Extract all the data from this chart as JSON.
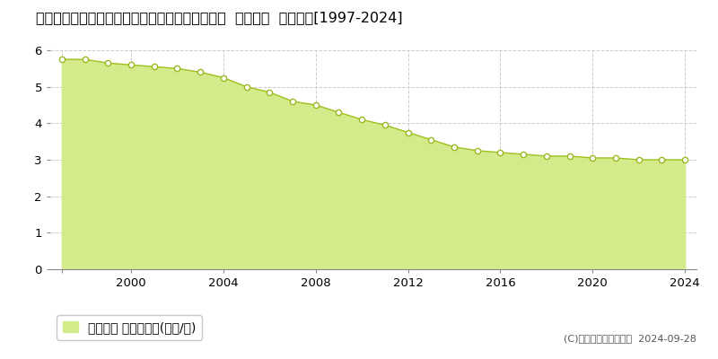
{
  "title": "青森県北津軽郡鶴田町大字鶴田字前田１２８番５  基準地価  地価推移[1997-2024]",
  "years": [
    1997,
    1998,
    1999,
    2000,
    2001,
    2002,
    2003,
    2004,
    2005,
    2006,
    2007,
    2008,
    2009,
    2010,
    2011,
    2012,
    2013,
    2014,
    2015,
    2016,
    2017,
    2018,
    2019,
    2020,
    2021,
    2022,
    2023,
    2024
  ],
  "values": [
    5.75,
    5.75,
    5.65,
    5.6,
    5.55,
    5.5,
    5.4,
    5.25,
    5.0,
    4.85,
    4.6,
    4.5,
    4.3,
    4.1,
    3.95,
    3.75,
    3.55,
    3.35,
    3.25,
    3.2,
    3.15,
    3.1,
    3.1,
    3.05,
    3.05,
    3.0,
    3.0,
    3.0
  ],
  "ylim": [
    0,
    6
  ],
  "yticks": [
    0,
    1,
    2,
    3,
    4,
    5,
    6
  ],
  "xlim": [
    1996.5,
    2024.5
  ],
  "xticks": [
    1997,
    2000,
    2004,
    2008,
    2012,
    2016,
    2020,
    2024
  ],
  "area_color": "#d4eb8c",
  "line_color": "#a0c020",
  "marker_color": "#ffffff",
  "marker_edge_color": "#9ab820",
  "grid_color": "#cccccc",
  "background_color": "#ffffff",
  "plot_bg_color": "#ffffff",
  "legend_label": "基準地価 平均坪単価(万円/坪)",
  "copyright_text": "(C)土地価格ドットコム  2024-09-28",
  "title_fontsize": 11.5,
  "axis_fontsize": 9.5,
  "legend_fontsize": 10
}
